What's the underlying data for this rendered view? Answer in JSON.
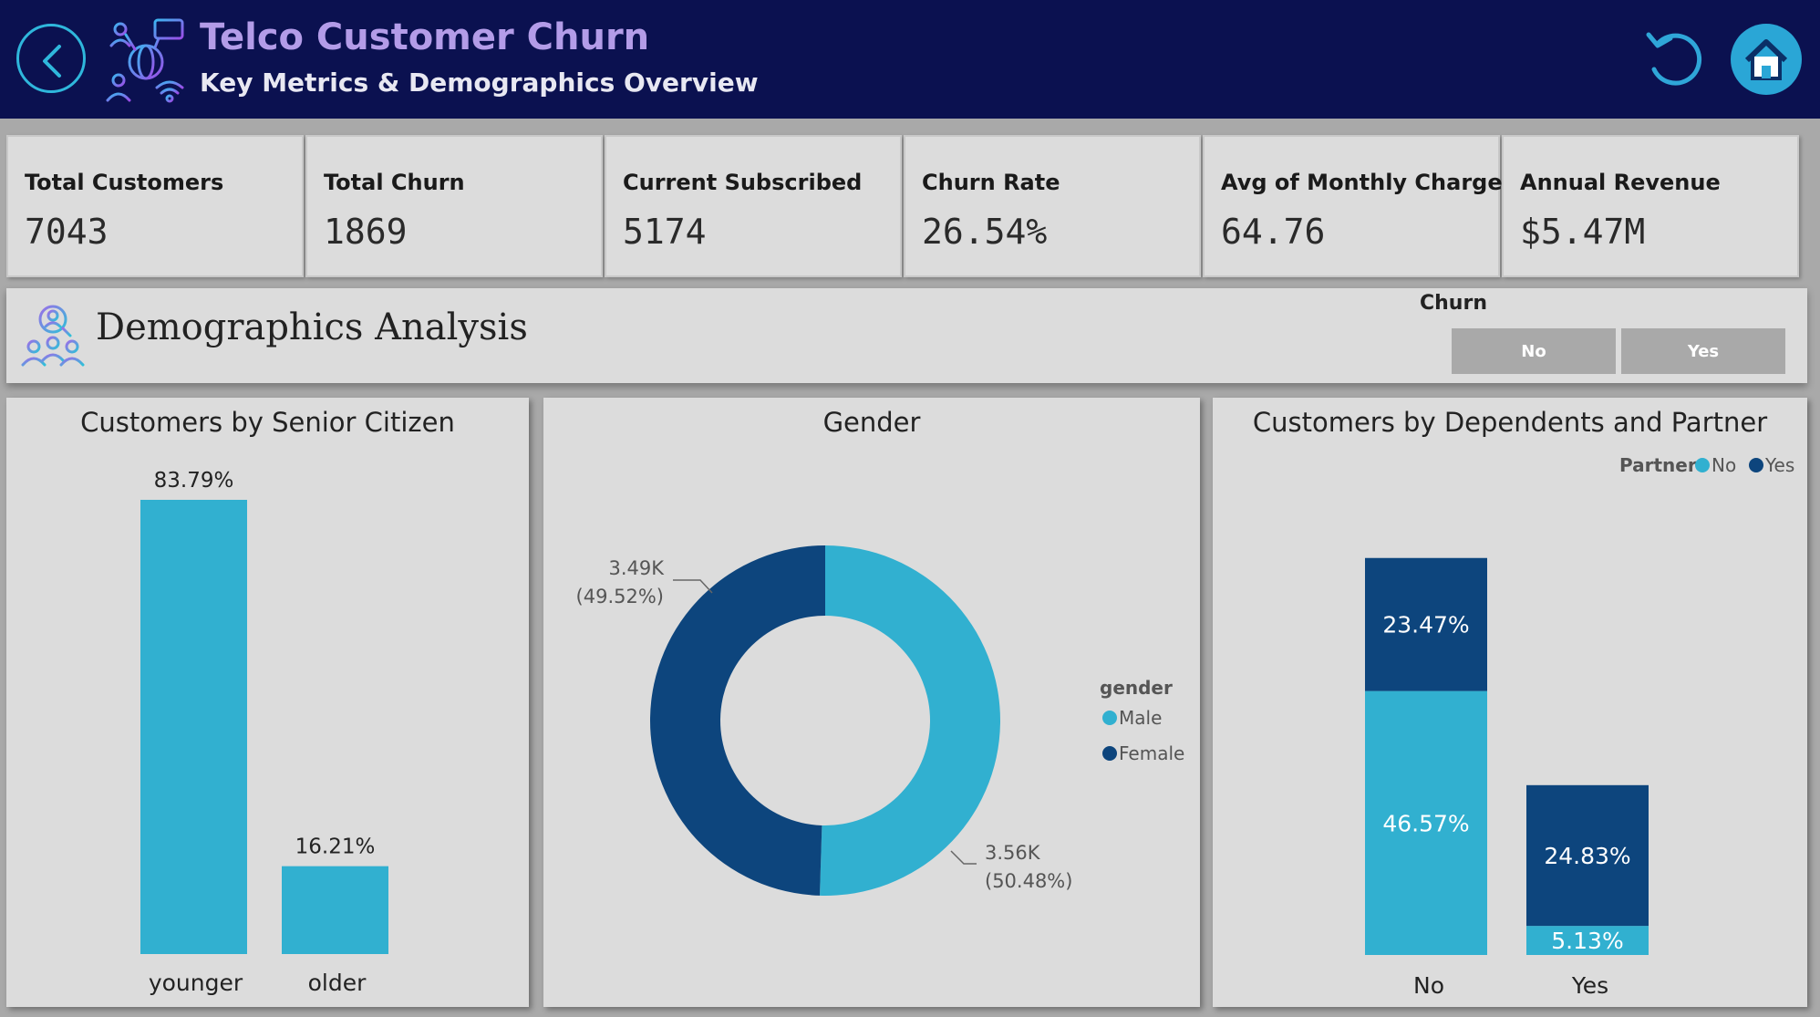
{
  "header": {
    "title": "Telco Customer Churn",
    "subtitle": "Key Metrics & Demographics Overview",
    "back_icon": "back-arrow-icon",
    "refresh_icon": "undo-icon",
    "home_icon": "home-icon",
    "title_color": "#b39ce8",
    "background_color": "#0b1150"
  },
  "kpis": [
    {
      "label": "Total Customers",
      "value": "7043"
    },
    {
      "label": "Total Churn",
      "value": "1869"
    },
    {
      "label": "Current Subscribed",
      "value": "5174"
    },
    {
      "label": "Churn Rate",
      "value": "26.54%"
    },
    {
      "label": "Avg of Monthly Charges",
      "value": "64.76"
    },
    {
      "label": "Annual Revenue",
      "value": "$5.47M"
    }
  ],
  "demographics": {
    "title": "Demographics Analysis",
    "slicer": {
      "title": "Churn",
      "options": [
        "No",
        "Yes"
      ]
    }
  },
  "colors": {
    "light_blue": "#31b0d0",
    "dark_blue": "#0d457d",
    "panel_bg": "#dcdcdc"
  },
  "chart_data": [
    {
      "type": "bar",
      "title": "Customers by Senior Citizen",
      "categories": [
        "younger",
        "older"
      ],
      "values": [
        83.79,
        16.21
      ],
      "data_labels": [
        "83.79%",
        "16.21%"
      ],
      "xlabel": "",
      "ylabel": "",
      "ylim": [
        0,
        100
      ]
    },
    {
      "type": "pie",
      "title": "Gender",
      "donut": true,
      "legend_title": "gender",
      "legend_position": "right",
      "slices": [
        {
          "name": "Male",
          "value": 3.56,
          "percent": 50.48,
          "label": "3.56K",
          "pct_label": "(50.48%)"
        },
        {
          "name": "Female",
          "value": 3.49,
          "percent": 49.52,
          "label": "3.49K",
          "pct_label": "(49.52%)"
        }
      ]
    },
    {
      "type": "bar",
      "stacked": true,
      "title": "Customers by Dependents and Partner",
      "legend_title": "Partner",
      "legend_position": "top-right",
      "categories": [
        "No",
        "Yes"
      ],
      "series": [
        {
          "name": "No",
          "values": [
            46.57,
            5.13
          ],
          "labels": [
            "46.57%",
            "5.13%"
          ]
        },
        {
          "name": "Yes",
          "values": [
            23.47,
            24.83
          ],
          "labels": [
            "23.47%",
            "24.83%"
          ]
        }
      ],
      "ylim": [
        0,
        70
      ]
    }
  ]
}
